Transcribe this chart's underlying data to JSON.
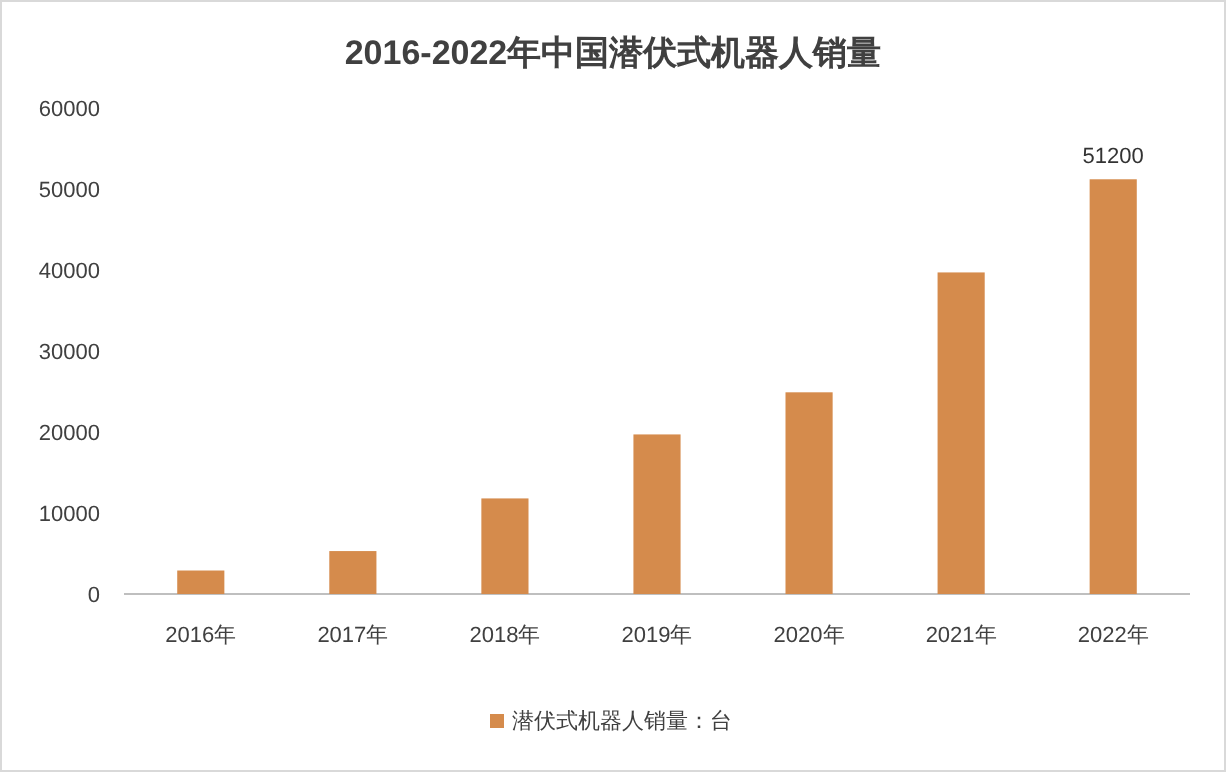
{
  "chart_data": {
    "type": "bar",
    "title": "2016-2022年中国潜伏式机器人销量",
    "categories": [
      "2016年",
      "2017年",
      "2018年",
      "2019年",
      "2020年",
      "2021年",
      "2022年"
    ],
    "series": [
      {
        "name": "潜伏式机器人销量：台",
        "color": "#d58b4c",
        "values": [
          2900,
          5300,
          11800,
          19700,
          24900,
          39700,
          51200
        ],
        "value_labels": [
          null,
          null,
          null,
          null,
          null,
          null,
          "51200"
        ]
      }
    ],
    "ylim": [
      0,
      60000
    ],
    "yticks": [
      0,
      10000,
      20000,
      30000,
      40000,
      50000,
      60000
    ],
    "grid": false,
    "legend": "bottom"
  }
}
